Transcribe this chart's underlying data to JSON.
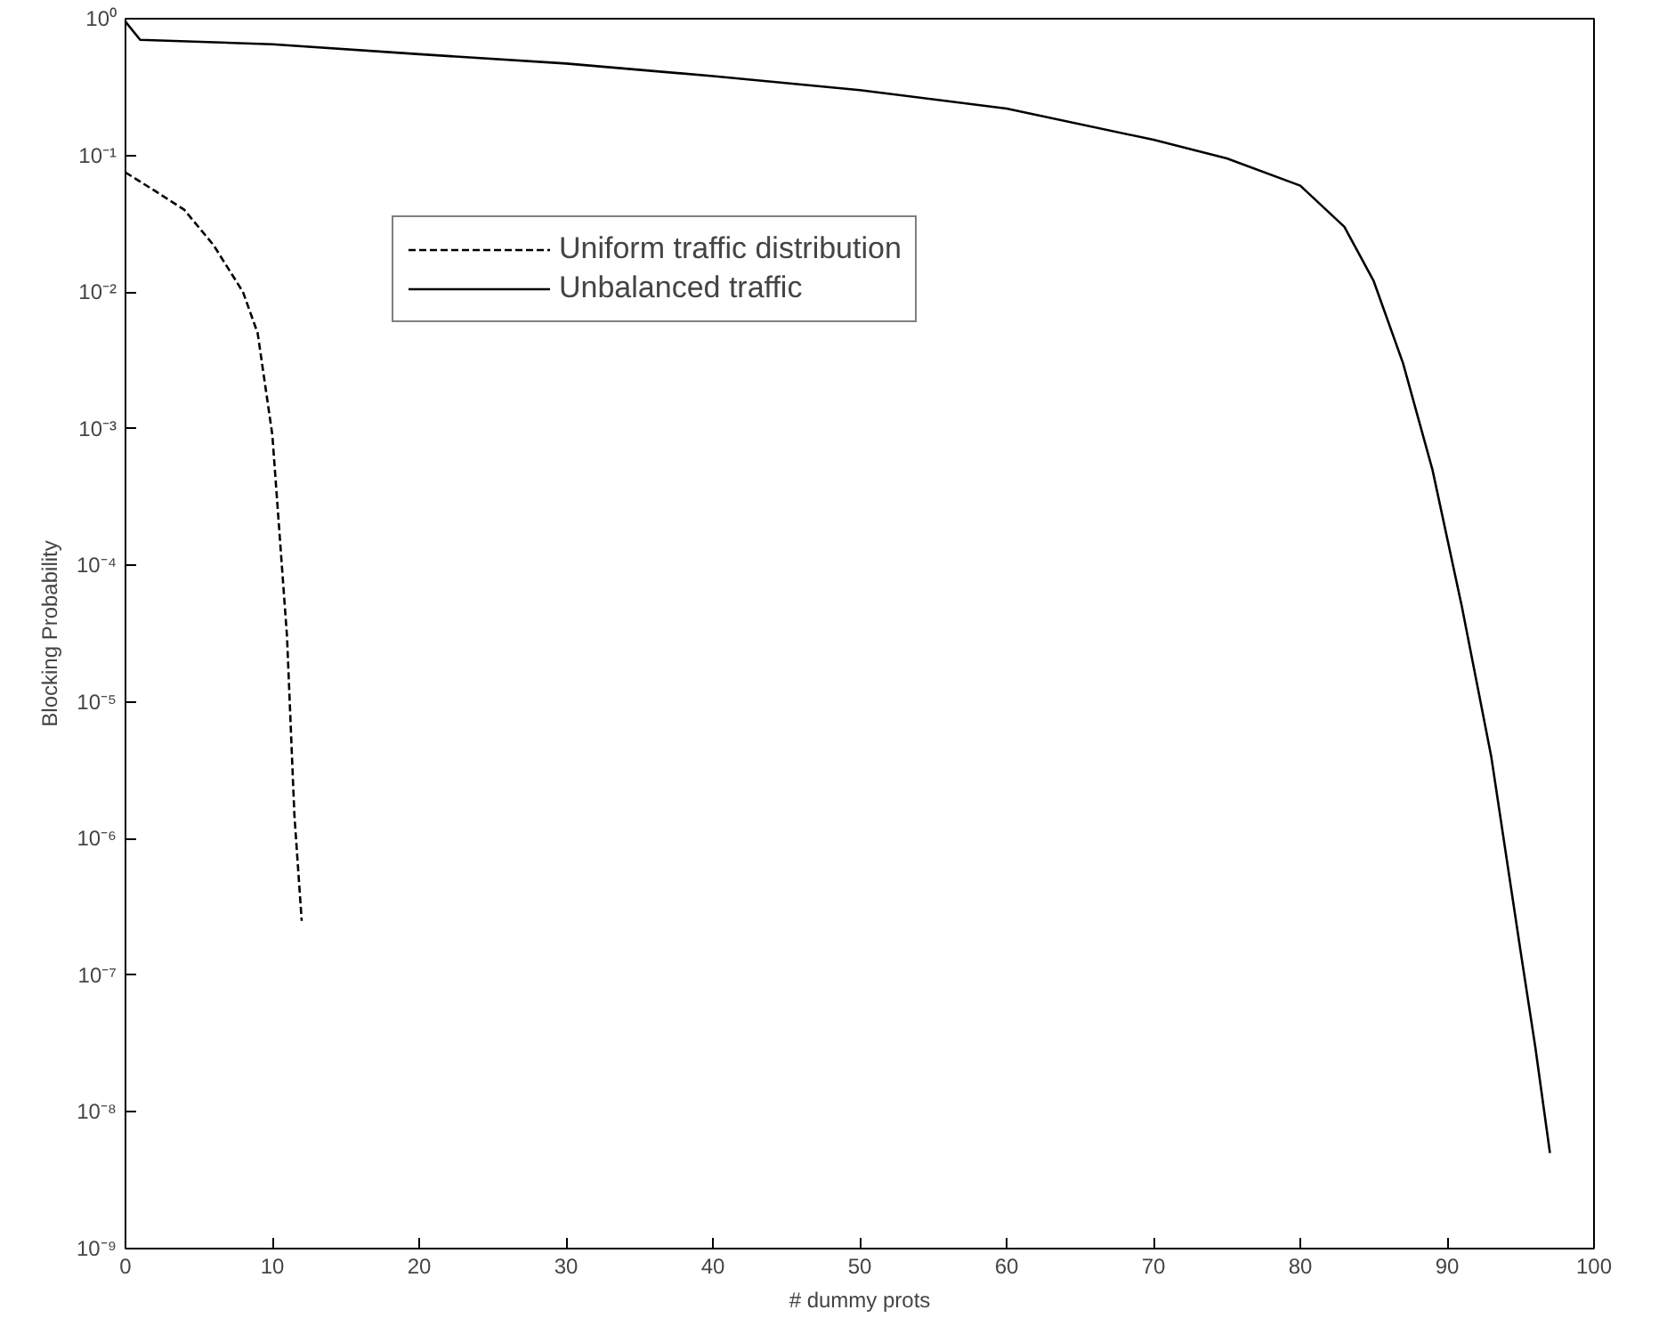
{
  "chart_data": {
    "type": "line",
    "xlabel": "# dummy prots",
    "ylabel": "Blocking Probability",
    "log": "y",
    "grid": false,
    "legend": "top left",
    "xlim": [
      0,
      100
    ],
    "xticks": [
      0,
      10,
      20,
      30,
      40,
      50,
      60,
      70,
      80,
      90,
      100
    ],
    "ylim": [
      1e-09,
      1
    ],
    "yticks": [
      {
        "value": 1e-09,
        "label": "10⁻⁹"
      },
      {
        "value": 1e-08,
        "label": "10⁻⁸"
      },
      {
        "value": 1e-07,
        "label": "10⁻⁷"
      },
      {
        "value": 1e-06,
        "label": "10⁻⁶"
      },
      {
        "value": 1e-05,
        "label": "10⁻⁵"
      },
      {
        "value": 0.0001,
        "label": "10⁻⁴"
      },
      {
        "value": 0.001,
        "label": "10⁻³"
      },
      {
        "value": 0.01,
        "label": "10⁻²"
      },
      {
        "value": 0.1,
        "label": "10⁻¹"
      },
      {
        "value": 1,
        "label": "10⁰"
      }
    ],
    "series": [
      {
        "name": "Uniform traffic distribution",
        "color": "#000000",
        "line_style": "dashed",
        "x": [
          0,
          2,
          4,
          6,
          8,
          9,
          10,
          11,
          11.5,
          12
        ],
        "values": [
          0.075,
          0.055,
          0.04,
          0.022,
          0.01,
          0.005,
          0.0009,
          3e-05,
          1.5e-06,
          2.5e-07
        ]
      },
      {
        "name": "Unbalanced traffic",
        "color": "#000000",
        "line_style": "solid",
        "x": [
          0,
          1,
          10,
          20,
          30,
          40,
          50,
          60,
          70,
          75,
          80,
          83,
          85,
          87,
          89,
          91,
          93,
          95,
          96,
          97
        ],
        "values": [
          0.95,
          0.7,
          0.65,
          0.55,
          0.47,
          0.38,
          0.3,
          0.22,
          0.13,
          0.095,
          0.06,
          0.03,
          0.012,
          0.003,
          0.0005,
          5e-05,
          4e-06,
          1.5e-07,
          3e-08,
          5e-09
        ]
      }
    ]
  }
}
